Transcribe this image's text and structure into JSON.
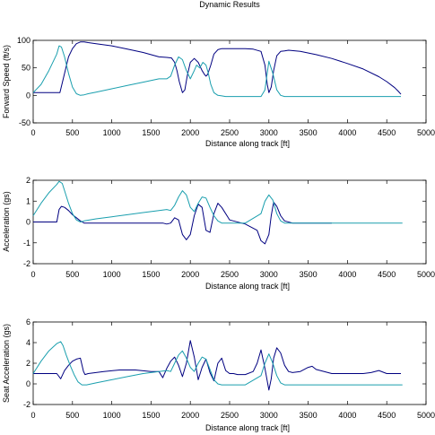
{
  "figure": {
    "title": "Dynamic Results"
  },
  "colors": {
    "dark": "#000080",
    "cyan": "#1a9fae",
    "axes": "#000000"
  },
  "chart_data": [
    {
      "type": "line",
      "xlabel": "Distance along track [ft]",
      "ylabel": "Forward Speed (ft/s)",
      "xlim": [
        0,
        5000
      ],
      "ylim": [
        -50,
        100
      ],
      "xticks": [
        "0",
        "500",
        "1000",
        "1500",
        "2000",
        "2500",
        "3000",
        "3500",
        "4000",
        "4500",
        "5000"
      ],
      "yticks": [
        "100",
        "50",
        "0",
        "-50"
      ],
      "grid": false,
      "series": [
        {
          "color": "dark",
          "x": [
            0,
            100,
            200,
            300,
            340,
            400,
            450,
            500,
            550,
            600,
            650,
            700,
            800,
            1000,
            1200,
            1400,
            1600,
            1700,
            1760,
            1800,
            1830,
            1860,
            1900,
            1930,
            1960,
            2000,
            2050,
            2100,
            2150,
            2180,
            2200,
            2220,
            2260,
            2300,
            2350,
            2400,
            2500,
            2700,
            2800,
            2900,
            2950,
            2980,
            3000,
            3030,
            3060,
            3100,
            3150,
            3200,
            3250,
            3400,
            3600,
            3800,
            4000,
            4200,
            4400,
            4500,
            4600,
            4650,
            4680
          ],
          "y": [
            5,
            5,
            5,
            5,
            5,
            40,
            70,
            85,
            94,
            97,
            97,
            96,
            94,
            90,
            84,
            78,
            70,
            69,
            68,
            60,
            45,
            25,
            5,
            10,
            35,
            60,
            67,
            60,
            45,
            38,
            35,
            38,
            55,
            75,
            83,
            85,
            85,
            85,
            84,
            80,
            55,
            20,
            5,
            15,
            45,
            72,
            80,
            81,
            82,
            80,
            74,
            67,
            58,
            48,
            34,
            25,
            14,
            7,
            2
          ]
        },
        {
          "color": "cyan",
          "x": [
            0,
            100,
            200,
            300,
            330,
            360,
            400,
            450,
            500,
            550,
            600,
            650,
            700,
            800,
            1000,
            1200,
            1400,
            1600,
            1700,
            1750,
            1800,
            1850,
            1900,
            1950,
            2000,
            2050,
            2080,
            2120,
            2160,
            2200,
            2230,
            2260,
            2300,
            2350,
            2400,
            2450,
            2500,
            2600,
            2800,
            2900,
            2950,
            3000,
            3050,
            3100,
            3150,
            3200,
            3300,
            3500,
            4000,
            4500,
            4680
          ],
          "y": [
            5,
            20,
            45,
            75,
            90,
            88,
            70,
            40,
            15,
            3,
            0,
            1,
            3,
            6,
            12,
            18,
            24,
            30,
            30,
            35,
            55,
            70,
            65,
            45,
            30,
            45,
            55,
            50,
            60,
            55,
            40,
            20,
            5,
            0,
            -1,
            -2,
            -2,
            -2,
            -2,
            -2,
            10,
            62,
            40,
            10,
            0,
            -2,
            -2,
            -2,
            -2,
            -2,
            -2
          ]
        }
      ]
    },
    {
      "type": "line",
      "xlabel": "Distance along track [ft]",
      "ylabel": "Acceleration (gs)",
      "xlim": [
        0,
        5000
      ],
      "ylim": [
        -2,
        2
      ],
      "xticks": [
        "0",
        "500",
        "1000",
        "1500",
        "2000",
        "2500",
        "3000",
        "3500",
        "4000",
        "4500",
        "5000"
      ],
      "yticks": [
        "2",
        "1",
        "0",
        "-1",
        "-2"
      ],
      "grid": false,
      "series": [
        {
          "color": "dark",
          "x": [
            0,
            100,
            200,
            300,
            330,
            360,
            400,
            450,
            500,
            550,
            600,
            650,
            1000,
            1500,
            1650,
            1700,
            1750,
            1800,
            1850,
            1900,
            1950,
            2000,
            2050,
            2100,
            2150,
            2200,
            2250,
            2300,
            2350,
            2400,
            2500,
            2700,
            2850,
            2900,
            2950,
            3000,
            3030,
            3060,
            3100,
            3150,
            3200,
            3300,
            3500,
            3800
          ],
          "y": [
            0,
            0,
            0,
            0,
            0.6,
            0.75,
            0.7,
            0.55,
            0.35,
            0.2,
            0.05,
            -0.05,
            -0.05,
            -0.05,
            -0.05,
            -0.1,
            -0.05,
            0.2,
            0.1,
            -0.6,
            -0.85,
            -0.6,
            0.3,
            0.85,
            0.7,
            -0.4,
            -0.5,
            0.4,
            0.9,
            0.7,
            0.1,
            -0.1,
            -0.4,
            -0.9,
            -1.05,
            -0.6,
            0.3,
            0.95,
            0.75,
            0.3,
            0.05,
            -0.05,
            -0.05,
            -0.05
          ]
        },
        {
          "color": "cyan",
          "x": [
            0,
            100,
            200,
            300,
            330,
            370,
            400,
            450,
            500,
            550,
            600,
            650,
            800,
            1000,
            1200,
            1400,
            1600,
            1700,
            1750,
            1800,
            1850,
            1900,
            1950,
            2000,
            2050,
            2100,
            2150,
            2200,
            2250,
            2300,
            2350,
            2400,
            2500,
            2700,
            2900,
            2950,
            3000,
            3050,
            3100,
            3150,
            3200,
            3500,
            4000,
            4500,
            4700
          ],
          "y": [
            0.3,
            0.9,
            1.4,
            1.8,
            1.95,
            1.85,
            1.5,
            0.9,
            0.4,
            0.1,
            0,
            0.05,
            0.15,
            0.25,
            0.35,
            0.45,
            0.55,
            0.6,
            0.55,
            0.8,
            1.2,
            1.5,
            1.3,
            0.7,
            0.5,
            0.9,
            1.2,
            1.15,
            0.7,
            0.3,
            0.05,
            -0.05,
            -0.05,
            -0.05,
            0.4,
            1.0,
            1.3,
            1.05,
            0.4,
            0.05,
            -0.05,
            -0.05,
            -0.05,
            -0.05,
            -0.05
          ]
        }
      ]
    },
    {
      "type": "line",
      "xlabel": "Distance along track [ft]",
      "ylabel": "Seat Acceleration (gs)",
      "xlim": [
        0,
        5000
      ],
      "ylim": [
        -2,
        6
      ],
      "xticks": [
        "0",
        "500",
        "1000",
        "1500",
        "2000",
        "2500",
        "3000",
        "3500",
        "4000",
        "4500",
        "5000"
      ],
      "yticks": [
        "6",
        "4",
        "2",
        "0",
        "-2"
      ],
      "grid": false,
      "series": [
        {
          "color": "dark",
          "x": [
            0,
            100,
            200,
            300,
            350,
            400,
            450,
            500,
            550,
            600,
            640,
            660,
            700,
            900,
            1100,
            1300,
            1500,
            1600,
            1650,
            1700,
            1750,
            1800,
            1850,
            1900,
            1950,
            2000,
            2050,
            2100,
            2150,
            2200,
            2250,
            2300,
            2350,
            2400,
            2450,
            2500,
            2550,
            2600,
            2700,
            2800,
            2850,
            2900,
            2950,
            3000,
            3030,
            3060,
            3100,
            3150,
            3200,
            3250,
            3300,
            3400,
            3500,
            3550,
            3600,
            3800,
            4000,
            4200,
            4300,
            4400,
            4500,
            4680
          ],
          "y": [
            1,
            1,
            1,
            1,
            0.5,
            1.3,
            1.8,
            2.2,
            2.4,
            2.5,
            1.2,
            0.9,
            1,
            1.2,
            1.35,
            1.35,
            1.2,
            1.2,
            0.6,
            1.5,
            2.2,
            2.6,
            1.8,
            0.7,
            2.0,
            4.2,
            2.6,
            0.4,
            1.6,
            2.4,
            1.1,
            0.3,
            2.0,
            2.5,
            1.3,
            1,
            1,
            0.9,
            0.9,
            1.2,
            2.0,
            3.3,
            1.5,
            -0.6,
            0.5,
            2.5,
            3.5,
            3.0,
            1.8,
            1.2,
            1.1,
            1.2,
            1.6,
            1.7,
            1.4,
            1.0,
            1.0,
            1.0,
            1.1,
            1.3,
            1.0,
            1.0
          ]
        },
        {
          "color": "cyan",
          "x": [
            0,
            100,
            200,
            300,
            350,
            380,
            420,
            470,
            520,
            570,
            620,
            680,
            800,
            1000,
            1200,
            1400,
            1600,
            1700,
            1750,
            1800,
            1850,
            1900,
            1950,
            2000,
            2050,
            2100,
            2150,
            2200,
            2250,
            2300,
            2350,
            2400,
            2500,
            2700,
            2900,
            2950,
            3000,
            3050,
            3100,
            3150,
            3200,
            3500,
            4000,
            4500,
            4700
          ],
          "y": [
            1,
            2.2,
            3.2,
            3.9,
            4.1,
            3.7,
            2.8,
            1.8,
            0.9,
            0.2,
            -0.1,
            -0.1,
            0.1,
            0.4,
            0.7,
            1.0,
            1.2,
            1.3,
            1.2,
            2.0,
            2.8,
            3.2,
            2.5,
            1.6,
            1.2,
            2.0,
            2.6,
            2.4,
            1.4,
            0.4,
            0,
            -0.1,
            -0.1,
            -0.1,
            0.8,
            2.0,
            2.9,
            2.0,
            0.8,
            0.1,
            -0.1,
            -0.1,
            -0.1,
            -0.1,
            -0.1
          ]
        }
      ]
    }
  ]
}
